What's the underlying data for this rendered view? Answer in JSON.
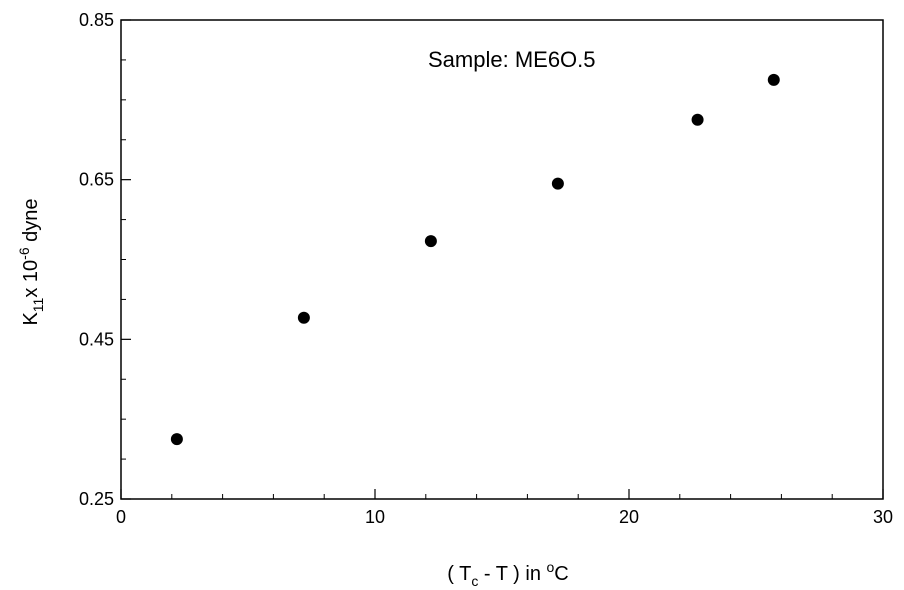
{
  "chart_data": {
    "type": "scatter",
    "annotation": "Sample: ME6O.5",
    "xlabel": {
      "open": "( T",
      "sub": "c",
      "mid": " - T ) in ",
      "sup": "o",
      "unit": "C"
    },
    "ylabel": {
      "base": "K",
      "sub": "11",
      "mid": "x 10",
      "sup": "-6",
      "unit": " dyne"
    },
    "xlim": [
      0,
      30
    ],
    "ylim": [
      0.25,
      0.85
    ],
    "x_ticks": [
      0,
      10,
      20,
      30
    ],
    "x_tick_labels": [
      "0",
      "10",
      "20",
      "30"
    ],
    "y_ticks": [
      0.25,
      0.45,
      0.65,
      0.85
    ],
    "y_tick_labels": [
      "0.25",
      "0.45",
      "0.65",
      "0.85"
    ],
    "grid": false,
    "marker_color": "#000000",
    "points": [
      {
        "x": 2.2,
        "y": 0.325
      },
      {
        "x": 7.2,
        "y": 0.477
      },
      {
        "x": 12.2,
        "y": 0.573
      },
      {
        "x": 17.2,
        "y": 0.645
      },
      {
        "x": 22.7,
        "y": 0.725
      },
      {
        "x": 25.7,
        "y": 0.775
      }
    ]
  }
}
